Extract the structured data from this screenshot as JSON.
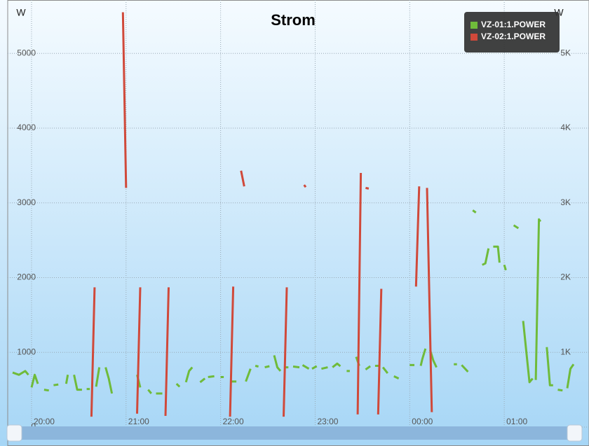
{
  "chart_data": {
    "type": "line",
    "title": "Strom",
    "y_label": "W",
    "y2_label": "W",
    "xlim": [
      "19:48",
      "01:44"
    ],
    "xticks": [
      "20:00",
      "21:00",
      "22:00",
      "23:00",
      "00:00",
      "01:00"
    ],
    "ylim": [
      0,
      5620
    ],
    "yticks": [
      0,
      1000,
      2000,
      3000,
      4000,
      5000
    ],
    "y2lim": [
      0,
      5620
    ],
    "y2ticks": [
      {
        "value": 1000,
        "label": "1K"
      },
      {
        "value": 2000,
        "label": "2K"
      },
      {
        "value": 3000,
        "label": "3K"
      },
      {
        "value": 4000,
        "label": "4K"
      },
      {
        "value": 5000,
        "label": "5K"
      }
    ],
    "grid": true,
    "legend": "top-right",
    "series": [
      {
        "name": "VZ-01:1.POWER",
        "color": "#6fbb3a",
        "x": [
          "19:48",
          "19:52",
          "19:56",
          "19:58",
          null,
          "20:00",
          "20:02",
          "20:04",
          null,
          "20:08",
          "20:11",
          null,
          "20:14",
          "20:17",
          null,
          "20:22",
          "20:23",
          null,
          "20:27",
          "20:29",
          "20:32",
          null,
          "20:35",
          "20:37",
          null,
          "20:41",
          "20:43",
          null,
          "20:47",
          "20:49",
          "20:51",
          null,
          "21:07",
          "21:09",
          null,
          "21:14",
          "21:16",
          null,
          "21:19",
          "21:23",
          null,
          "21:32",
          "21:34",
          null,
          "21:38",
          "21:40",
          "21:42",
          null,
          "21:47",
          "21:50",
          null,
          "21:52",
          "21:56",
          null,
          "22:00",
          "22:02",
          null,
          "22:07",
          "22:10",
          null,
          "22:16",
          "22:19",
          null,
          "22:22",
          "22:24",
          null,
          "22:28",
          "22:31",
          null,
          "22:34",
          "22:36",
          "22:38",
          null,
          "22:41",
          "22:43",
          null,
          "22:46",
          "22:50",
          null,
          "22:52",
          "22:56",
          null,
          "22:58",
          "23:01",
          null,
          "23:04",
          "23:08",
          null,
          "23:11",
          "23:14",
          "23:16",
          null,
          "23:20",
          "23:22",
          null,
          "23:26",
          "23:28",
          null,
          "23:32",
          "23:35",
          null,
          "23:38",
          "23:41",
          null,
          "23:43",
          "23:46",
          null,
          "23:50",
          "23:53",
          null,
          "00:00",
          "00:03",
          null,
          "00:07",
          "00:08",
          "00:10",
          null,
          "00:13",
          "00:15",
          "00:17",
          null,
          "00:28",
          "00:30",
          null,
          "00:33",
          "00:37",
          null,
          "00:40",
          "00:42",
          null,
          "00:46",
          "00:48",
          "00:50",
          null,
          "00:53",
          "00:56",
          "00:57",
          null,
          "01:00",
          "01:01",
          null,
          "01:06",
          "01:09",
          null,
          "01:12",
          "01:16",
          "01:18",
          null,
          "01:20",
          "01:22",
          "01:23",
          null,
          "01:27",
          "01:29",
          "01:31",
          null,
          "01:34",
          "01:37",
          null,
          "01:40",
          "01:42",
          "01:44"
        ],
        "values": [
          730,
          700,
          750,
          700,
          null,
          530,
          700,
          580,
          null,
          500,
          490,
          null,
          560,
          570,
          null,
          580,
          700,
          null,
          700,
          500,
          500,
          null,
          510,
          510,
          null,
          540,
          800,
          null,
          800,
          650,
          450,
          null,
          700,
          530,
          null,
          500,
          450,
          null,
          450,
          450,
          null,
          580,
          540,
          null,
          600,
          750,
          800,
          null,
          600,
          650,
          null,
          670,
          680,
          null,
          670,
          670,
          null,
          610,
          610,
          null,
          610,
          780,
          null,
          820,
          810,
          null,
          800,
          815,
          null,
          960,
          800,
          750,
          null,
          800,
          800,
          null,
          810,
          800,
          null,
          830,
          780,
          null,
          780,
          815,
          null,
          780,
          800,
          null,
          800,
          850,
          815,
          null,
          750,
          750,
          null,
          940,
          820,
          null,
          770,
          815,
          null,
          820,
          820,
          null,
          800,
          720,
          null,
          680,
          650,
          null,
          830,
          830,
          null,
          820,
          910,
          1050,
          null,
          1030,
          890,
          800,
          null,
          840,
          840,
          null,
          830,
          740,
          null,
          2900,
          2870,
          null,
          2170,
          2190,
          2390,
          null,
          2415,
          2415,
          2200,
          null,
          2170,
          2100,
          null,
          2700,
          2660,
          null,
          1420,
          600,
          650,
          null,
          630,
          2780,
          2750,
          null,
          1070,
          560,
          560,
          null,
          500,
          490,
          null,
          520,
          780,
          840
        ]
      },
      {
        "name": "VZ-02:1.POWER",
        "color": "#d0493a",
        "x": [
          "20:38",
          "20:40",
          null,
          "20:58",
          "21:00",
          null,
          "21:07",
          "21:09",
          null,
          "21:25",
          "21:27",
          null,
          "22:06",
          "22:08",
          null,
          "22:13",
          "22:15",
          null,
          "22:40",
          "22:42",
          null,
          "22:53",
          "22:54",
          null,
          "23:27",
          "23:29",
          null,
          "23:32",
          "23:34",
          null,
          "23:40",
          "23:42",
          null,
          "00:04",
          "00:06",
          null,
          "00:11",
          "00:14"
        ],
        "values": [
          140,
          1870,
          null,
          5550,
          3200,
          null,
          180,
          1870,
          null,
          150,
          1870,
          null,
          140,
          1880,
          null,
          3430,
          3220,
          null,
          140,
          1870,
          null,
          3240,
          3210,
          null,
          170,
          3400,
          null,
          3200,
          3190,
          null,
          170,
          1850,
          null,
          1880,
          3220,
          null,
          3200,
          200
        ]
      }
    ]
  }
}
